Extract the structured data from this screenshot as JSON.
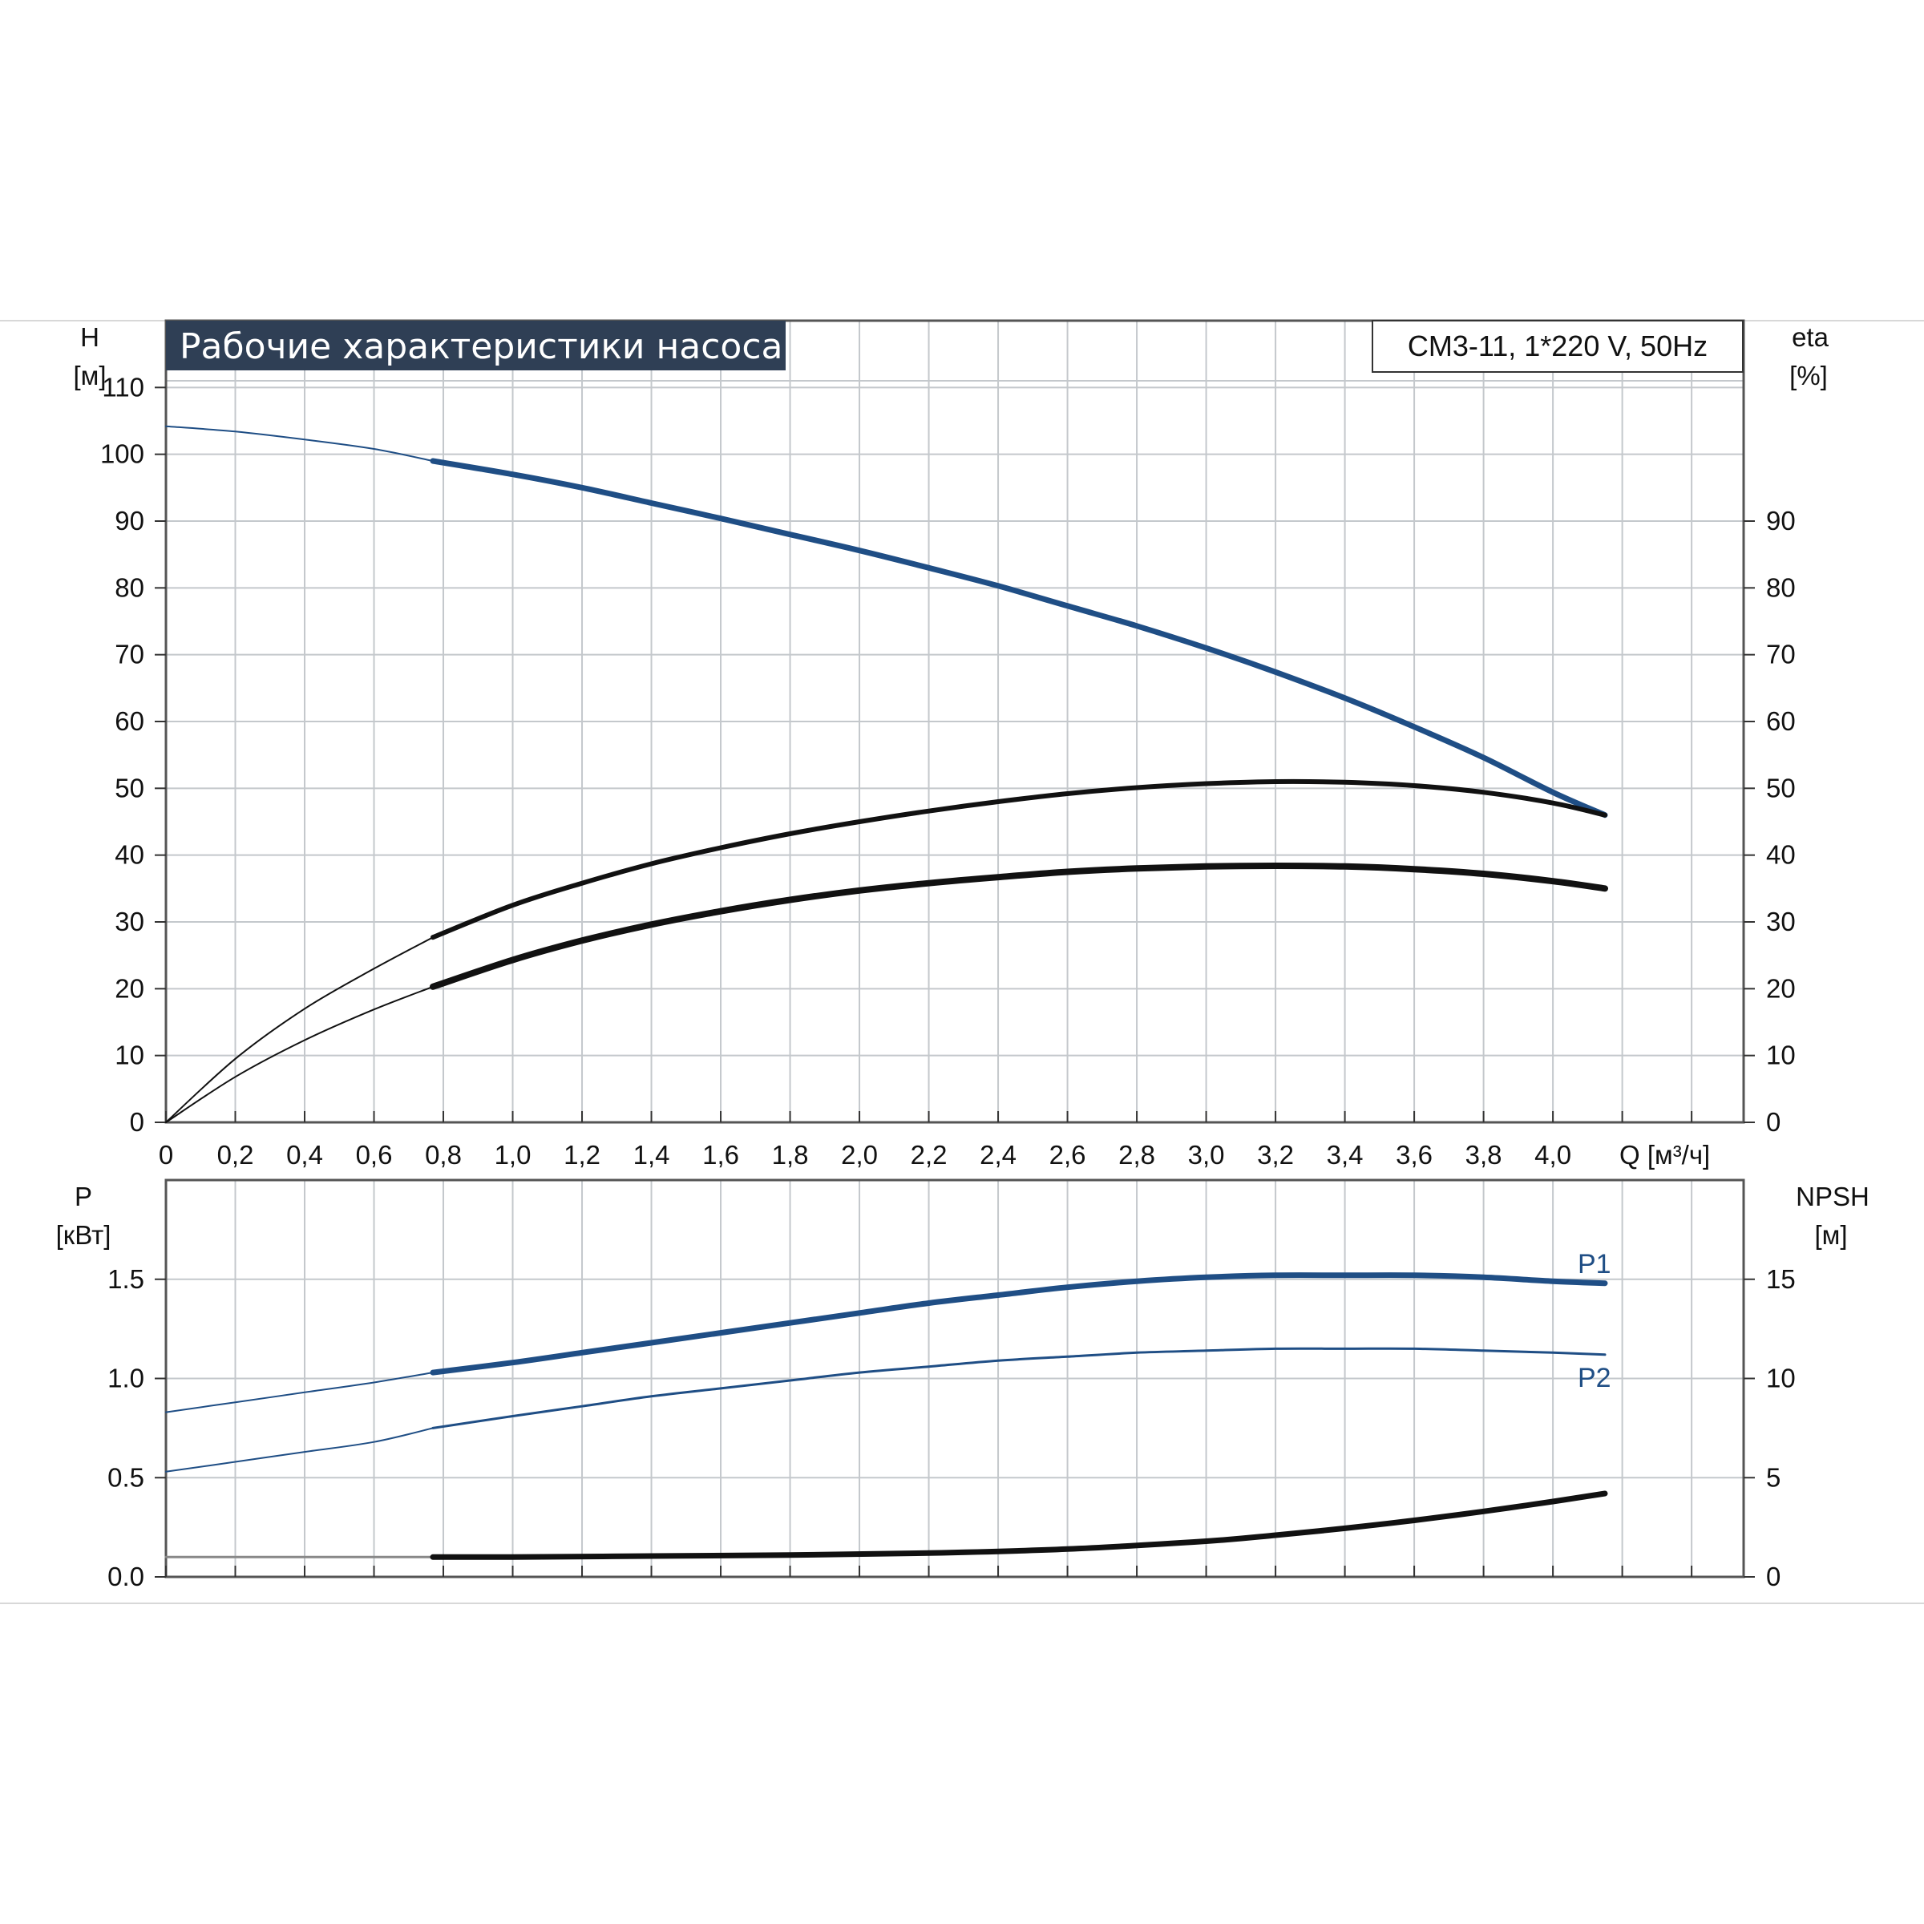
{
  "title": "Рабочие характеристики насоса",
  "model": "CM3-11, 1*220 V, 50Hz",
  "colors": {
    "blue": "#1f4e85",
    "dark": "#111111",
    "grid": "#c4c8cc",
    "title_bg": "#2f3f55"
  },
  "upper_panel": {
    "left_axis_label": "H",
    "left_axis_unit": "[м]",
    "right_axis_label": "eta",
    "right_axis_unit": "[%]",
    "left_ticks": [
      "0",
      "10",
      "20",
      "30",
      "40",
      "50",
      "60",
      "70",
      "80",
      "90",
      "100",
      "110"
    ],
    "right_ticks": [
      "0",
      "10",
      "20",
      "30",
      "40",
      "50",
      "60",
      "70",
      "80",
      "90"
    ],
    "x_ticks": [
      "0",
      "0,2",
      "0,4",
      "0,6",
      "0,8",
      "1,0",
      "1,2",
      "1,4",
      "1,6",
      "1,8",
      "2,0",
      "2,2",
      "2,4",
      "2,6",
      "2,8",
      "3,0",
      "3,2",
      "3,4",
      "3,6",
      "3,8",
      "4,0"
    ],
    "x_axis_label": "Q [м³/ч]"
  },
  "lower_panel": {
    "left_axis_label": "P",
    "left_axis_unit": "[кВт]",
    "right_axis_label": "NPSH",
    "right_axis_unit": "[м]",
    "left_ticks": [
      "0.0",
      "0.5",
      "1.0",
      "1.5"
    ],
    "right_ticks": [
      "0",
      "5",
      "10",
      "15"
    ],
    "curve_labels": {
      "p1": "P1",
      "p2": "P2"
    }
  },
  "chart_data": [
    {
      "type": "line",
      "title": "Рабочие характеристики насоса",
      "subtitle": "CM3-11, 1*220 V, 50Hz",
      "xlabel": "Q [м³/ч]",
      "ylabel": "H [м]",
      "y2label": "eta [%]",
      "xlim": [
        0,
        4.55
      ],
      "ylim": [
        0,
        120
      ],
      "y2lim": [
        0,
        120
      ],
      "grid": true,
      "series": [
        {
          "color": "#1f4e85",
          "x": [
            0,
            0.2,
            0.4,
            0.6,
            0.77,
            1.0,
            1.2,
            1.4,
            1.6,
            1.8,
            2.0,
            2.2,
            2.4,
            2.6,
            2.8,
            3.0,
            3.2,
            3.4,
            3.6,
            3.8,
            4.0,
            4.15
          ],
          "y": [
            104.2,
            103.4,
            102.2,
            100.8,
            99.0,
            97.0,
            95.0,
            92.7,
            90.4,
            88.0,
            85.6,
            83.0,
            80.3,
            77.3,
            74.3,
            71.0,
            67.4,
            63.5,
            59.2,
            54.6,
            49.4,
            46.0
          ]
        },
        {
          "color": "#111111",
          "axis": "right",
          "x": [
            0,
            0.2,
            0.4,
            0.6,
            0.77,
            1.0,
            1.2,
            1.4,
            1.6,
            1.8,
            2.0,
            2.2,
            2.4,
            2.6,
            2.8,
            3.0,
            3.2,
            3.4,
            3.6,
            3.8,
            4.0,
            4.15
          ],
          "y": [
            0,
            9.5,
            17.0,
            23.0,
            27.7,
            32.5,
            35.8,
            38.7,
            41.1,
            43.2,
            45.0,
            46.6,
            48.0,
            49.2,
            50.1,
            50.7,
            51.0,
            50.9,
            50.4,
            49.4,
            47.8,
            46.0
          ]
        },
        {
          "color": "#111111",
          "axis": "right",
          "x": [
            0,
            0.2,
            0.4,
            0.6,
            0.77,
            1.0,
            1.2,
            1.4,
            1.6,
            1.8,
            2.0,
            2.2,
            2.4,
            2.6,
            2.8,
            3.0,
            3.2,
            3.4,
            3.6,
            3.8,
            4.0,
            4.15
          ],
          "y": [
            0,
            6.8,
            12.3,
            16.9,
            20.3,
            24.3,
            27.2,
            29.6,
            31.6,
            33.3,
            34.7,
            35.8,
            36.7,
            37.5,
            38.0,
            38.3,
            38.4,
            38.3,
            37.9,
            37.2,
            36.1,
            35.0
          ]
        }
      ]
    },
    {
      "type": "line",
      "xlabel": "Q [м³/ч]",
      "ylabel": "P [кВт]",
      "y2label": "NPSH [м]",
      "xlim": [
        0,
        4.55
      ],
      "ylim": [
        0,
        2.0
      ],
      "y2lim": [
        0,
        20
      ],
      "grid": true,
      "series": [
        {
          "name": "P1",
          "color": "#1f4e85",
          "x": [
            0,
            0.2,
            0.4,
            0.6,
            0.77,
            1.0,
            1.2,
            1.4,
            1.6,
            1.8,
            2.0,
            2.2,
            2.4,
            2.6,
            2.8,
            3.0,
            3.2,
            3.4,
            3.6,
            3.8,
            4.0,
            4.15
          ],
          "y": [
            0.83,
            0.88,
            0.93,
            0.98,
            1.03,
            1.08,
            1.13,
            1.18,
            1.23,
            1.28,
            1.33,
            1.38,
            1.42,
            1.46,
            1.49,
            1.51,
            1.52,
            1.52,
            1.52,
            1.51,
            1.49,
            1.48
          ]
        },
        {
          "name": "P2",
          "color": "#1f4e85",
          "x": [
            0,
            0.2,
            0.4,
            0.6,
            0.77,
            1.0,
            1.2,
            1.4,
            1.6,
            1.8,
            2.0,
            2.2,
            2.4,
            2.6,
            2.8,
            3.0,
            3.2,
            3.4,
            3.6,
            3.8,
            4.0,
            4.15
          ],
          "y": [
            0.53,
            0.58,
            0.63,
            0.68,
            0.75,
            0.81,
            0.86,
            0.91,
            0.95,
            0.99,
            1.03,
            1.06,
            1.09,
            1.11,
            1.13,
            1.14,
            1.15,
            1.15,
            1.15,
            1.14,
            1.13,
            1.12
          ]
        },
        {
          "color": "#111111",
          "axis": "right",
          "x": [
            0,
            0.77,
            1.0,
            1.4,
            1.8,
            2.2,
            2.6,
            3.0,
            3.2,
            3.4,
            3.6,
            3.8,
            4.0,
            4.15
          ],
          "y": [
            1.0,
            1.0,
            1.0,
            1.05,
            1.1,
            1.2,
            1.4,
            1.8,
            2.1,
            2.45,
            2.85,
            3.3,
            3.8,
            4.2
          ]
        }
      ]
    }
  ]
}
